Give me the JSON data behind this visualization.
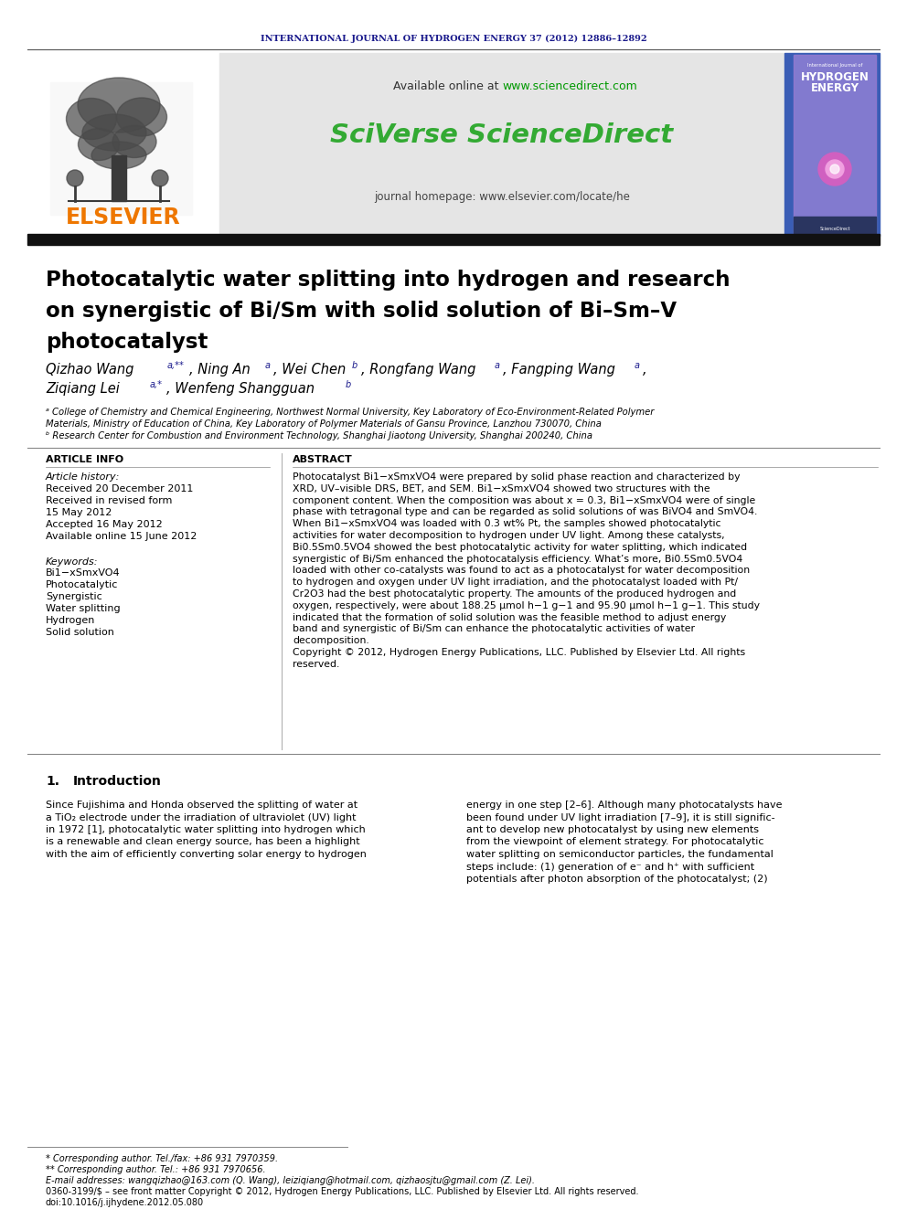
{
  "journal_header": "INTERNATIONAL JOURNAL OF HYDROGEN ENERGY 37 (2012) 12886–12892",
  "journal_header_color": "#1a1a8c",
  "available_online_prefix": "Available online at ",
  "available_online_url": "www.sciencedirect.com",
  "available_online_url_color": "#009900",
  "sciverse_text": "SciVerse ScienceDirect",
  "sciverse_color": "#33aa33",
  "journal_homepage": "journal homepage: www.elsevier.com/locate/he",
  "elsevier_text": "ELSEVIER",
  "elsevier_color": "#ee7700",
  "title_line1": "Photocatalytic water splitting into hydrogen and research",
  "title_line2": "on synergistic of Bi/Sm with solid solution of Bi–Sm–V",
  "title_line3": "photocatalyst",
  "author_line1": "Qizhao Wang",
  "author_line1_sup1": "a,**",
  "author_line1_rest": ", Ning An",
  "author_line1_sup2": "a",
  "author_line1_rest2": ", Wei Chen",
  "author_line1_sup3": "b",
  "author_line1_rest3": ", Rongfang Wang",
  "author_line1_sup4": "a",
  "author_line1_rest4": ", Fangping Wang",
  "author_line1_sup5": "a",
  "author_line1_end": ",",
  "author_line2": "Ziqiang Lei",
  "author_line2_sup1": "a,*",
  "author_line2_rest": ", Wenfeng Shangguan",
  "author_line2_sup2": "b",
  "affiliation_a": "ᵃ College of Chemistry and Chemical Engineering, Northwest Normal University, Key Laboratory of Eco-Environment-Related Polymer",
  "affiliation_a2": "Materials, Ministry of Education of China, Key Laboratory of Polymer Materials of Gansu Province, Lanzhou 730070, China",
  "affiliation_b": "ᵇ Research Center for Combustion and Environment Technology, Shanghai Jiaotong University, Shanghai 200240, China",
  "article_info_header": "ARTICLE INFO",
  "article_history_header": "Article history:",
  "received1": "Received 20 December 2011",
  "received2": "Received in revised form",
  "received2b": "15 May 2012",
  "accepted": "Accepted 16 May 2012",
  "available": "Available online 15 June 2012",
  "keywords_header": "Keywords:",
  "kw1": "Bi1−xSmxVO4",
  "kw2": "Photocatalytic",
  "kw3": "Synergistic",
  "kw4": "Water splitting",
  "kw5": "Hydrogen",
  "kw6": "Solid solution",
  "abstract_header": "ABSTRACT",
  "abstract_lines": [
    "Photocatalyst Bi1−xSmxVO4 were prepared by solid phase reaction and characterized by",
    "XRD, UV–visible DRS, BET, and SEM. Bi1−xSmxVO4 showed two structures with the",
    "component content. When the composition was about x = 0.3, Bi1−xSmxVO4 were of single",
    "phase with tetragonal type and can be regarded as solid solutions of was BiVO4 and SmVO4.",
    "When Bi1−xSmxVO4 was loaded with 0.3 wt% Pt, the samples showed photocatalytic",
    "activities for water decomposition to hydrogen under UV light. Among these catalysts,",
    "Bi0.5Sm0.5VO4 showed the best photocatalytic activity for water splitting, which indicated",
    "synergistic of Bi/Sm enhanced the photocatalysis efficiency. What’s more, Bi0.5Sm0.5VO4",
    "loaded with other co-catalysts was found to act as a photocatalyst for water decomposition",
    "to hydrogen and oxygen under UV light irradiation, and the photocatalyst loaded with Pt/",
    "Cr2O3 had the best photocatalytic property. The amounts of the produced hydrogen and",
    "oxygen, respectively, were about 188.25 μmol h−1 g−1 and 95.90 μmol h−1 g−1. This study",
    "indicated that the formation of solid solution was the feasible method to adjust energy",
    "band and synergistic of Bi/Sm can enhance the photocatalytic activities of water",
    "decomposition.",
    "Copyright © 2012, Hydrogen Energy Publications, LLC. Published by Elsevier Ltd. All rights",
    "reserved."
  ],
  "intro_title": "1.      Introduction",
  "intro_left_lines": [
    "Since Fujishima and Honda observed the splitting of water at",
    "a TiO₂ electrode under the irradiation of ultraviolet (UV) light",
    "in 1972 [1], photocatalytic water splitting into hydrogen which",
    "is a renewable and clean energy source, has been a highlight",
    "with the aim of efficiently converting solar energy to hydrogen"
  ],
  "intro_right_lines": [
    "energy in one step [2–6]. Although many photocatalysts have",
    "been found under UV light irradiation [7–9], it is still signific-",
    "ant to develop new photocatalyst by using new elements",
    "from the viewpoint of element strategy. For photocatalytic",
    "water splitting on semiconductor particles, the fundamental",
    "steps include: (1) generation of e⁻ and h⁺ with sufficient",
    "potentials after photon absorption of the photocatalyst; (2)"
  ],
  "footnote1": "* Corresponding author. Tel./fax: +86 931 7970359.",
  "footnote2": "** Corresponding author. Tel.: +86 931 7970656.",
  "footnote3": "E-mail addresses: wangqizhao@163.com (Q. Wang), leiziqiang@hotmail.com, qizhaosjtu@gmail.com (Z. Lei).",
  "footnote4": "0360-3199/$ – see front matter Copyright © 2012, Hydrogen Energy Publications, LLC. Published by Elsevier Ltd. All rights reserved.",
  "footnote5": "doi:10.1016/j.ijhydene.2012.05.080",
  "bg_color": "#ffffff",
  "sup_color": "#1a1a8c",
  "dark_bar_color": "#111111",
  "gray_box_color": "#e5e5e5",
  "cover_bg_dark": "#1a2d7a",
  "cover_bg_mid": "#2a4fbf",
  "cover_pink": "#cc44bb",
  "cover_purple_bg": "#9955bb"
}
